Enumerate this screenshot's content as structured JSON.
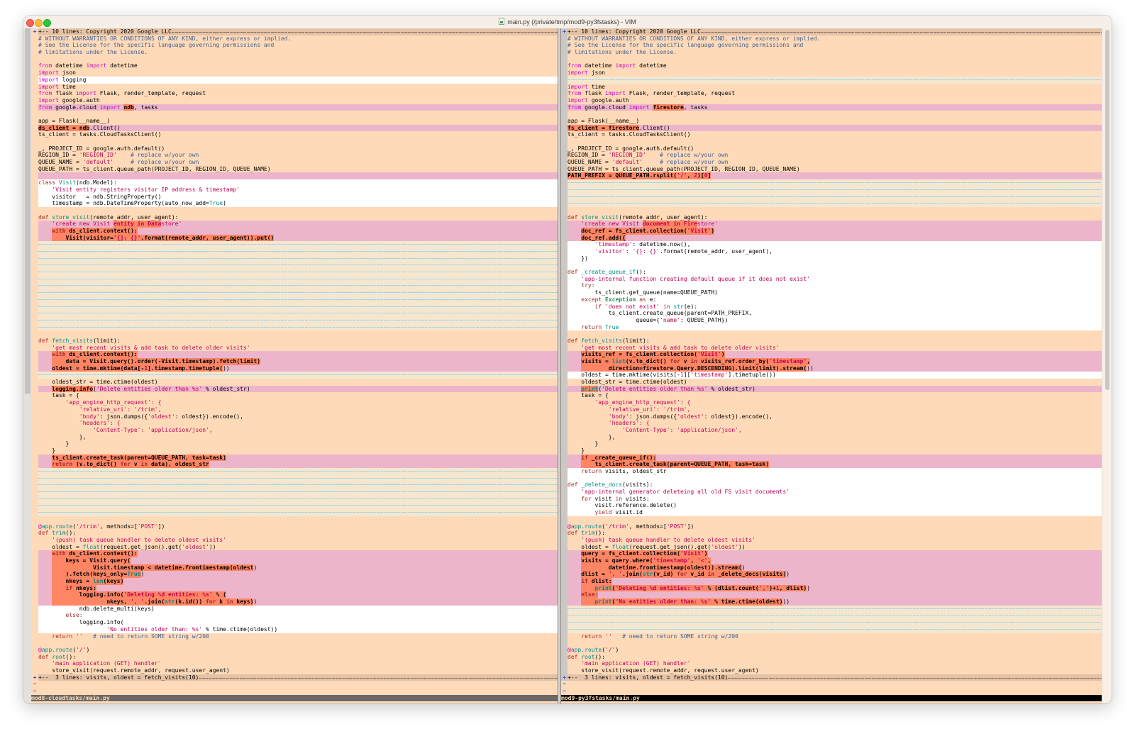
{
  "window": {
    "title": "main.py (/private/tmp/mod9-py3fstasks) - VIM"
  },
  "icons": {
    "fold_marker": "+",
    "tilde": "~",
    "file": "python-file-icon"
  },
  "colors": {
    "normal_bg": "#ffdab9",
    "diff_add": "#ffffff",
    "diff_change": "#ecb5cb",
    "diff_text": "#ff8564",
    "diff_delete": "#f5e7cf",
    "folded": "#e4c2a6"
  },
  "left": {
    "status": "mod8-cloudtasks/main.py",
    "rows": [
      {
        "k": "z",
        "s": [
          "+-- 10 lines: Copyright 2020 Google LLC"
        ]
      },
      {
        "k": "n",
        "s": [
          "# WITHOUT WARRANTIES OR CONDITIONS OF ANY KIND, either express or implied."
        ]
      },
      {
        "k": "n",
        "s": [
          "# See the License for the specific language governing permissions and"
        ]
      },
      {
        "k": "n",
        "s": [
          "# limitations under the License."
        ]
      },
      {
        "k": "n",
        "s": [
          ""
        ]
      },
      {
        "k": "n",
        "s": [
          "from datetime import datetime"
        ]
      },
      {
        "k": "n",
        "s": [
          "import json"
        ]
      },
      {
        "k": "a",
        "s": [
          "import logging"
        ]
      },
      {
        "k": "n",
        "s": [
          "import time"
        ]
      },
      {
        "k": "n",
        "s": [
          "from flask import Flask, render_template, request"
        ]
      },
      {
        "k": "n",
        "s": [
          "import google.auth"
        ]
      },
      {
        "k": "c",
        "s": [
          "from google.cloud import ",
          "ndb",
          ", tasks"
        ]
      },
      {
        "k": "n",
        "s": [
          ""
        ]
      },
      {
        "k": "n",
        "s": [
          "app = Flask(__name__)"
        ]
      },
      {
        "k": "c",
        "s": [
          "",
          "ds_client = ndb",
          ".Client()"
        ]
      },
      {
        "k": "n",
        "s": [
          "ts_client = tasks.CloudTasksClient()"
        ]
      },
      {
        "k": "n",
        "s": [
          ""
        ]
      },
      {
        "k": "n",
        "s": [
          "_, PROJECT_ID = google.auth.default()"
        ]
      },
      {
        "k": "n",
        "s": [
          "REGION_ID = 'REGION_ID'    # replace w/your own"
        ]
      },
      {
        "k": "n",
        "s": [
          "QUEUE_NAME = 'default'     # replace w/your own"
        ]
      },
      {
        "k": "n",
        "s": [
          "QUEUE_PATH = ts_client.queue_path(PROJECT_ID, REGION_ID, QUEUE_NAME)"
        ]
      },
      {
        "k": "c",
        "s": [
          ""
        ]
      },
      {
        "k": "a",
        "s": [
          "class Visit(ndb.Model):"
        ]
      },
      {
        "k": "a",
        "s": [
          "    'Visit entity registers visitor IP address & timestamp'"
        ]
      },
      {
        "k": "a",
        "s": [
          "    visitor   = ndb.StringProperty()"
        ]
      },
      {
        "k": "a",
        "s": [
          "    timestamp = ndb.DateTimeProperty(auto_now_add=True)"
        ]
      },
      {
        "k": "n",
        "s": [
          ""
        ]
      },
      {
        "k": "n",
        "s": [
          "def store_visit(remote_addr, user_agent):"
        ]
      },
      {
        "k": "c",
        "s": [
          "    'create new Visit ",
          "entity in Data",
          "store'"
        ]
      },
      {
        "k": "c",
        "s": [
          "    ",
          "with ds_client.context():"
        ]
      },
      {
        "k": "c",
        "s": [
          "    ",
          "    Visit(visitor='{}: {}'.format(remote_addr, user_agent)).put()"
        ]
      },
      {
        "k": "f"
      },
      {
        "k": "f"
      },
      {
        "k": "f"
      },
      {
        "k": "f"
      },
      {
        "k": "f"
      },
      {
        "k": "f"
      },
      {
        "k": "f"
      },
      {
        "k": "f"
      },
      {
        "k": "f"
      },
      {
        "k": "f"
      },
      {
        "k": "f"
      },
      {
        "k": "f"
      },
      {
        "k": "f"
      },
      {
        "k": "n",
        "s": [
          ""
        ]
      },
      {
        "k": "n",
        "s": [
          "def fetch_visits(limit):"
        ]
      },
      {
        "k": "n",
        "s": [
          "    'get most recent visits & add task to delete older visits'"
        ]
      },
      {
        "k": "c",
        "s": [
          "    ",
          "with ds_client.context():"
        ]
      },
      {
        "k": "c",
        "s": [
          "    ",
          "    data = Visit.query().order(-Visit.timestamp).fetch(limit)"
        ]
      },
      {
        "k": "c",
        "s": [
          "    ",
          "oldest = time.mktime(data[-1].timestamp.timetuple(",
          "))"
        ]
      },
      {
        "k": "f"
      },
      {
        "k": "n",
        "s": [
          "    oldest_str = time.ctime(oldest)"
        ]
      },
      {
        "k": "c",
        "s": [
          "    ",
          "logging.info",
          "('Delete entities older than %s' % oldest_str)"
        ]
      },
      {
        "k": "n",
        "s": [
          "    task = {"
        ]
      },
      {
        "k": "n",
        "s": [
          "        'app_engine_http_request': {"
        ]
      },
      {
        "k": "n",
        "s": [
          "            'relative_uri': '/trim',"
        ]
      },
      {
        "k": "n",
        "s": [
          "            'body': json.dumps({'oldest': oldest}).encode(),"
        ]
      },
      {
        "k": "n",
        "s": [
          "            'headers': {"
        ]
      },
      {
        "k": "n",
        "s": [
          "                'Content-Type': 'application/json',"
        ]
      },
      {
        "k": "n",
        "s": [
          "            },"
        ]
      },
      {
        "k": "n",
        "s": [
          "        }"
        ]
      },
      {
        "k": "n",
        "s": [
          "    }"
        ]
      },
      {
        "k": "c",
        "s": [
          "    ",
          "ts_client.create_task(parent=QUEUE_PATH, task=task)"
        ]
      },
      {
        "k": "c",
        "s": [
          "    ",
          "return (v.to_dict() for v in data), oldest_str"
        ]
      },
      {
        "k": "f"
      },
      {
        "k": "f"
      },
      {
        "k": "f"
      },
      {
        "k": "f"
      },
      {
        "k": "f"
      },
      {
        "k": "f"
      },
      {
        "k": "f"
      },
      {
        "k": "n",
        "s": [
          ""
        ]
      },
      {
        "k": "n",
        "s": [
          "@app.route('/trim', methods=['POST'])"
        ]
      },
      {
        "k": "n",
        "s": [
          "def trim():"
        ]
      },
      {
        "k": "n",
        "s": [
          "    '(push) task queue handler to delete oldest visits'"
        ]
      },
      {
        "k": "n",
        "s": [
          "    oldest = float(request.get_json().get('oldest'))"
        ]
      },
      {
        "k": "c",
        "s": [
          "    ",
          "with ds_client.context():"
        ]
      },
      {
        "k": "c",
        "s": [
          "    ",
          "    keys = Visit.query("
        ]
      },
      {
        "k": "c",
        "s": [
          "    ",
          "            Visit.timestamp < datetime.fromtimestamp(oldest",
          ")"
        ]
      },
      {
        "k": "c",
        "s": [
          "    ",
          "    ).fetch(keys_only=True",
          ")"
        ]
      },
      {
        "k": "c",
        "s": [
          "    ",
          "    nkeys = len(keys)"
        ]
      },
      {
        "k": "c",
        "s": [
          "    ",
          "    if nkeys:"
        ]
      },
      {
        "k": "c",
        "s": [
          "    ",
          "        logging.info('Deleting %d entities: %s' % ("
        ]
      },
      {
        "k": "c",
        "s": [
          "    ",
          "                nkeys, ', '.join(str(k.id()) for k in keys)",
          ")"
        ]
      },
      {
        "k": "a",
        "s": [
          "            ndb.delete_multi(keys)"
        ]
      },
      {
        "k": "a",
        "s": [
          "        else:"
        ]
      },
      {
        "k": "a",
        "s": [
          "            logging.info("
        ]
      },
      {
        "k": "a",
        "s": [
          "                    'No entities older than: %s' % time.ctime(oldest))"
        ]
      },
      {
        "k": "n",
        "s": [
          "    return ''   # need to return SOME string w/200"
        ]
      },
      {
        "k": "n",
        "s": [
          ""
        ]
      },
      {
        "k": "n",
        "s": [
          "@app.route('/')"
        ]
      },
      {
        "k": "n",
        "s": [
          "def root():"
        ]
      },
      {
        "k": "n",
        "s": [
          "    'main application (GET) handler'"
        ]
      },
      {
        "k": "n",
        "s": [
          "    store_visit(request.remote_addr, request.user_agent)"
        ]
      },
      {
        "k": "z",
        "s": [
          "+--  3 lines: visits, oldest = fetch_visits(10)"
        ]
      }
    ]
  },
  "right": {
    "status": "mod9-py3fstasks/main.py",
    "rows": [
      {
        "k": "z",
        "s": [
          "+-- 10 lines: Copyright 2020 Google LLC"
        ]
      },
      {
        "k": "n",
        "s": [
          "# WITHOUT WARRANTIES OR CONDITIONS OF ANY KIND, either express or implied."
        ]
      },
      {
        "k": "n",
        "s": [
          "# See the License for the specific language governing permissions and"
        ]
      },
      {
        "k": "n",
        "s": [
          "# limitations under the License."
        ]
      },
      {
        "k": "n",
        "s": [
          ""
        ]
      },
      {
        "k": "n",
        "s": [
          "from datetime import datetime"
        ]
      },
      {
        "k": "n",
        "s": [
          "import json"
        ]
      },
      {
        "k": "f"
      },
      {
        "k": "n",
        "s": [
          "import time"
        ]
      },
      {
        "k": "n",
        "s": [
          "from flask import Flask, render_template, request"
        ]
      },
      {
        "k": "n",
        "s": [
          "import google.auth"
        ]
      },
      {
        "k": "c",
        "s": [
          "from google.cloud import ",
          "firestore",
          ", tasks"
        ]
      },
      {
        "k": "n",
        "s": [
          ""
        ]
      },
      {
        "k": "n",
        "s": [
          "app = Flask(__name__)"
        ]
      },
      {
        "k": "c",
        "s": [
          "",
          "fs_client = firestore",
          ".Client()"
        ]
      },
      {
        "k": "n",
        "s": [
          "ts_client = tasks.CloudTasksClient()"
        ]
      },
      {
        "k": "n",
        "s": [
          ""
        ]
      },
      {
        "k": "n",
        "s": [
          "_, PROJECT_ID = google.auth.default()"
        ]
      },
      {
        "k": "n",
        "s": [
          "REGION_ID = 'REGION_ID'    # replace w/your own"
        ]
      },
      {
        "k": "n",
        "s": [
          "QUEUE_NAME = 'default'     # replace w/your own"
        ]
      },
      {
        "k": "n",
        "s": [
          "QUEUE_PATH = ts_client.queue_path(PROJECT_ID, REGION_ID, QUEUE_NAME)"
        ]
      },
      {
        "k": "c",
        "s": [
          "",
          "PATH_PREFIX = QUEUE_PATH.rsplit('/', 2)[0]"
        ]
      },
      {
        "k": "f"
      },
      {
        "k": "f"
      },
      {
        "k": "f"
      },
      {
        "k": "f"
      },
      {
        "k": "n",
        "s": [
          ""
        ]
      },
      {
        "k": "n",
        "s": [
          "def store_visit(remote_addr, user_agent):"
        ]
      },
      {
        "k": "c",
        "s": [
          "    'create new Visit ",
          "document in Fire",
          "store'"
        ]
      },
      {
        "k": "c",
        "s": [
          "    ",
          "doc_ref = fs_client.collection('Visit')"
        ]
      },
      {
        "k": "c",
        "s": [
          "    ",
          "doc_ref.add({"
        ]
      },
      {
        "k": "a",
        "s": [
          "        'timestamp': datetime.now(),"
        ]
      },
      {
        "k": "a",
        "s": [
          "        'visitor': '{}: {}'.format(remote_addr, user_agent),"
        ]
      },
      {
        "k": "a",
        "s": [
          "    })"
        ]
      },
      {
        "k": "a",
        "s": [
          ""
        ]
      },
      {
        "k": "a",
        "s": [
          "def _create_queue_if():"
        ]
      },
      {
        "k": "a",
        "s": [
          "    'app-internal function creating default queue if it does not exist'"
        ]
      },
      {
        "k": "a",
        "s": [
          "    try:"
        ]
      },
      {
        "k": "a",
        "s": [
          "        ts_client.get_queue(name=QUEUE_PATH)"
        ]
      },
      {
        "k": "a",
        "s": [
          "    except Exception as e:"
        ]
      },
      {
        "k": "a",
        "s": [
          "        if 'does not exist' in str(e):"
        ]
      },
      {
        "k": "a",
        "s": [
          "            ts_client.create_queue(parent=PATH_PREFIX,"
        ]
      },
      {
        "k": "a",
        "s": [
          "                    queue={'name': QUEUE_PATH})"
        ]
      },
      {
        "k": "a",
        "s": [
          "    return True"
        ]
      },
      {
        "k": "n",
        "s": [
          ""
        ]
      },
      {
        "k": "n",
        "s": [
          "def fetch_visits(limit):"
        ]
      },
      {
        "k": "n",
        "s": [
          "    'get most recent visits & add task to delete older visits'"
        ]
      },
      {
        "k": "c",
        "s": [
          "    ",
          "visits_ref = fs_client.collection('Visit')"
        ]
      },
      {
        "k": "c",
        "s": [
          "    ",
          "visits = list(v.to_dict() for v in visits_ref.order_by('timestamp',"
        ]
      },
      {
        "k": "c",
        "s": [
          "    ",
          "        direction=firestore.Query.DESCENDING).limit(limit).stream(",
          "))"
        ]
      },
      {
        "k": "a",
        "s": [
          "    oldest = time.mktime(visits[-1]['timestamp'].timetuple())"
        ]
      },
      {
        "k": "n",
        "s": [
          "    oldest_str = time.ctime(oldest)"
        ]
      },
      {
        "k": "c",
        "s": [
          "    ",
          "print",
          "('Delete entities older than %s' % oldest_str)"
        ]
      },
      {
        "k": "n",
        "s": [
          "    task = {"
        ]
      },
      {
        "k": "n",
        "s": [
          "        'app_engine_http_request': {"
        ]
      },
      {
        "k": "n",
        "s": [
          "            'relative_uri': '/trim',"
        ]
      },
      {
        "k": "n",
        "s": [
          "            'body': json.dumps({'oldest': oldest}).encode(),"
        ]
      },
      {
        "k": "n",
        "s": [
          "            'headers': {"
        ]
      },
      {
        "k": "n",
        "s": [
          "                'Content-Type': 'application/json',"
        ]
      },
      {
        "k": "n",
        "s": [
          "            },"
        ]
      },
      {
        "k": "n",
        "s": [
          "        }"
        ]
      },
      {
        "k": "n",
        "s": [
          "    }"
        ]
      },
      {
        "k": "c",
        "s": [
          "    ",
          "if _create_queue_if():"
        ]
      },
      {
        "k": "c",
        "s": [
          "    ",
          "    ts_client.create_task(parent=QUEUE_PATH, task=task)"
        ]
      },
      {
        "k": "a",
        "s": [
          "    return visits, oldest_str"
        ]
      },
      {
        "k": "a",
        "s": [
          ""
        ]
      },
      {
        "k": "a",
        "s": [
          "def _delete_docs(visits):"
        ]
      },
      {
        "k": "a",
        "s": [
          "    'app-internal generator deleteing all old FS visit documents'"
        ]
      },
      {
        "k": "a",
        "s": [
          "    for visit in visits:"
        ]
      },
      {
        "k": "a",
        "s": [
          "        visit.reference.delete()"
        ]
      },
      {
        "k": "a",
        "s": [
          "        yield visit.id"
        ]
      },
      {
        "k": "n",
        "s": [
          ""
        ]
      },
      {
        "k": "n",
        "s": [
          "@app.route('/trim', methods=['POST'])"
        ]
      },
      {
        "k": "n",
        "s": [
          "def trim():"
        ]
      },
      {
        "k": "n",
        "s": [
          "    '(push) task queue handler to delete oldest visits'"
        ]
      },
      {
        "k": "n",
        "s": [
          "    oldest = float(request.get_json().get('oldest'))"
        ]
      },
      {
        "k": "c",
        "s": [
          "    ",
          "query = fs_client.collection('Visit')"
        ]
      },
      {
        "k": "c",
        "s": [
          "    ",
          "visits = query.where('timestamp', '<',"
        ]
      },
      {
        "k": "c",
        "s": [
          "    ",
          "        datetime.fromtimestamp(oldest)).stream(",
          ")"
        ]
      },
      {
        "k": "c",
        "s": [
          "    ",
          "dlist = ', '.join(str(v_id) for v_id in _delete_docs(visits)",
          ")"
        ]
      },
      {
        "k": "c",
        "s": [
          "    ",
          "if dlist:"
        ]
      },
      {
        "k": "c",
        "s": [
          "    ",
          "    print('Deleting %d entities: %s' % (dlist.count(',')+1, dlist)",
          ")"
        ]
      },
      {
        "k": "c",
        "s": [
          "    ",
          "else:"
        ]
      },
      {
        "k": "c",
        "s": [
          "    ",
          "    print('No entities older than: %s' % time.ctime(oldest)",
          "))"
        ]
      },
      {
        "k": "f"
      },
      {
        "k": "f"
      },
      {
        "k": "f"
      },
      {
        "k": "f"
      },
      {
        "k": "n",
        "s": [
          "    return ''   # need to return SOME string w/200"
        ]
      },
      {
        "k": "n",
        "s": [
          ""
        ]
      },
      {
        "k": "n",
        "s": [
          "@app.route('/')"
        ]
      },
      {
        "k": "n",
        "s": [
          "def root():"
        ]
      },
      {
        "k": "n",
        "s": [
          "    'main application (GET) handler'"
        ]
      },
      {
        "k": "n",
        "s": [
          "    store_visit(request.remote_addr, request.user_agent)"
        ]
      },
      {
        "k": "z",
        "s": [
          "+--  3 lines: visits, oldest = fetch_visits(10)"
        ]
      }
    ]
  }
}
